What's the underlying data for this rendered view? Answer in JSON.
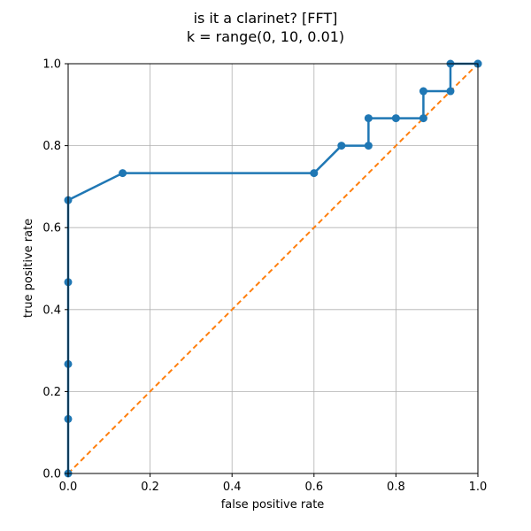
{
  "chart_data": {
    "type": "line",
    "title_line1": "is it a clarinet? [FFT]",
    "title_line2": "k = range(0, 10, 0.01)",
    "xlabel": "false positive rate",
    "ylabel": "true positive rate",
    "xlim": [
      0,
      1
    ],
    "ylim": [
      0,
      1
    ],
    "xticks": [
      "0.0",
      "0.2",
      "0.4",
      "0.6",
      "0.8",
      "1.0"
    ],
    "yticks": [
      "0.0",
      "0.2",
      "0.4",
      "0.6",
      "0.8",
      "1.0"
    ],
    "grid": true,
    "series": [
      {
        "style": "solid line with circle markers",
        "color": "#1f77b4",
        "x": [
          0.0,
          0.0,
          0.0,
          0.0,
          0.0,
          0.133,
          0.6,
          0.667,
          0.733,
          0.733,
          0.8,
          0.867,
          0.867,
          0.933,
          0.933,
          1.0,
          1.0
        ],
        "y": [
          0.0,
          0.133,
          0.267,
          0.467,
          0.667,
          0.733,
          0.733,
          0.8,
          0.8,
          0.867,
          0.867,
          0.867,
          0.933,
          0.933,
          1.0,
          1.0,
          1.0
        ]
      },
      {
        "style": "dashed line",
        "color": "#ff7f0e",
        "x": [
          0,
          1
        ],
        "y": [
          0,
          1
        ]
      }
    ]
  }
}
